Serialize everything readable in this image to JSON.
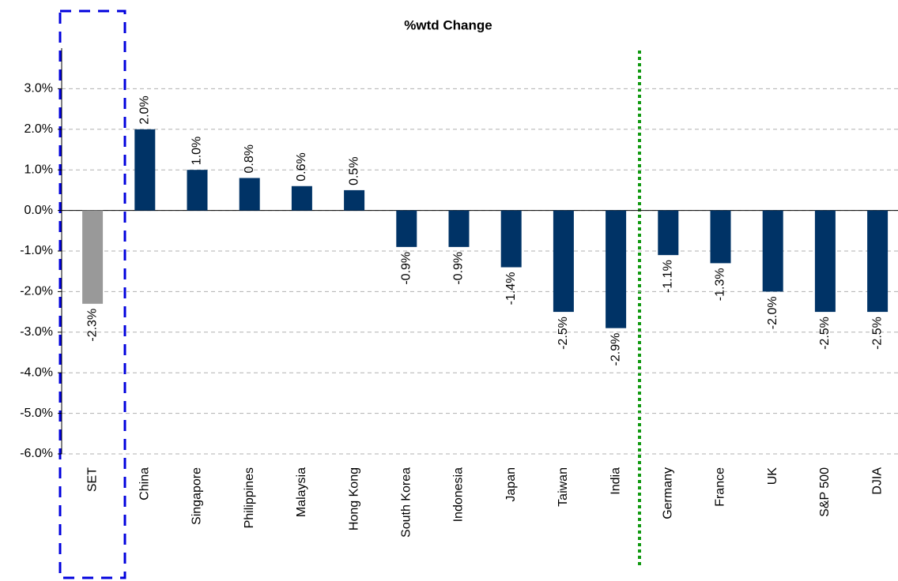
{
  "chart_data": {
    "type": "bar",
    "title": "%wtd Change",
    "categories": [
      "SET",
      "China",
      "Singapore",
      "Philippines",
      "Malaysia",
      "Hong Kong",
      "South Korea",
      "Indonesia",
      "Japan",
      "Taiwan",
      "India",
      "Germany",
      "France",
      "UK",
      "S&P 500",
      "DJIA"
    ],
    "values": [
      -2.3,
      2.0,
      1.0,
      0.8,
      0.6,
      0.5,
      -0.9,
      -0.9,
      -1.4,
      -2.5,
      -2.9,
      -1.1,
      -1.3,
      -2.0,
      -2.5,
      -2.5
    ],
    "value_labels": [
      "-2.3%",
      "2.0%",
      "1.0%",
      "0.8%",
      "0.6%",
      "0.5%",
      "-0.9%",
      "-0.9%",
      "-1.4%",
      "-2.5%",
      "-2.9%",
      "-1.1%",
      "-1.3%",
      "-2.0%",
      "-2.5%",
      "-2.5%"
    ],
    "colors": [
      "#999999",
      "#003366",
      "#003366",
      "#003366",
      "#003366",
      "#003366",
      "#003366",
      "#003366",
      "#003366",
      "#003366",
      "#003366",
      "#003366",
      "#003366",
      "#003366",
      "#003366",
      "#003366"
    ],
    "ylim": [
      -6,
      4
    ],
    "yticks": [
      {
        "value": -6,
        "label": "-6.0%"
      },
      {
        "value": -5,
        "label": "-5.0%"
      },
      {
        "value": -4,
        "label": "-4.0%"
      },
      {
        "value": -3,
        "label": "-3.0%"
      },
      {
        "value": -2,
        "label": "-2.0%"
      },
      {
        "value": -1,
        "label": "-1.0%"
      },
      {
        "value": 0,
        "label": "0.0%"
      },
      {
        "value": 1,
        "label": "1.0%"
      },
      {
        "value": 2,
        "label": "2.0%"
      },
      {
        "value": 3,
        "label": "3.0%"
      }
    ],
    "grid": true
  }
}
